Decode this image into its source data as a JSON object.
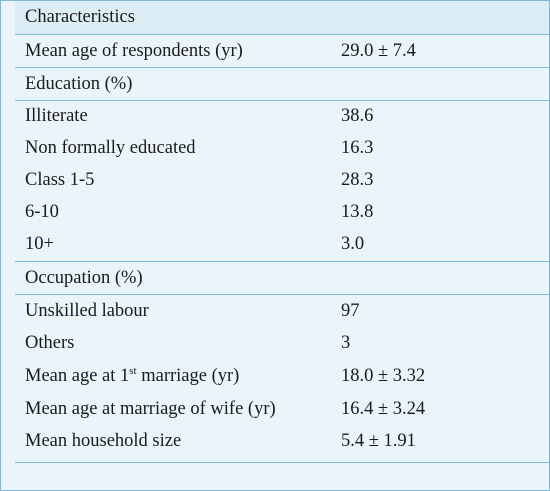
{
  "table": {
    "header": {
      "label": "Characteristics",
      "value": ""
    },
    "mean_age": {
      "label": "Mean age of respondents (yr)",
      "value": "29.0 ± 7.4"
    },
    "education_header": {
      "label": "Education (%)"
    },
    "education": [
      {
        "label": "Illiterate",
        "value": "38.6"
      },
      {
        "label": "Non formally educated",
        "value": "16.3"
      },
      {
        "label": "Class 1-5",
        "value": "28.3"
      },
      {
        "label": "6-10",
        "value": "13.8"
      },
      {
        "label": "10+",
        "value": "3.0"
      }
    ],
    "occupation_header": {
      "label": "Occupation (%)"
    },
    "occupation": [
      {
        "label": "Unskilled labour",
        "value": "97"
      },
      {
        "label": "Others",
        "value": "3"
      }
    ],
    "marriage_age": {
      "label_before": "Mean age at 1",
      "label_sup": "st",
      "label_after": " marriage (yr)",
      "value": "18.0 ± 3.32"
    },
    "wife_marriage_age": {
      "label": "Mean age at marriage of wife (yr)",
      "value": "16.4 ± 3.24"
    },
    "household_size": {
      "label": "Mean household size",
      "value": "5.4 ± 1.91"
    }
  }
}
